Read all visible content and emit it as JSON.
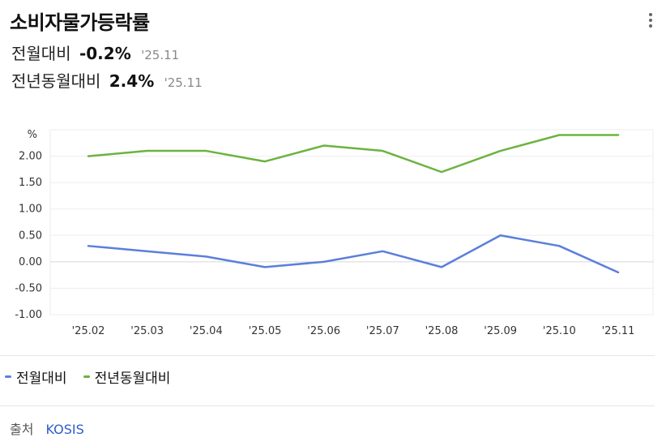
{
  "header": {
    "title": "소비자물가등락률",
    "mom_label": "전월대비",
    "mom_value": "-0.2%",
    "mom_period": "'25.11",
    "yoy_label": "전년동월대비",
    "yoy_value": "2.4%",
    "yoy_period": "'25.11",
    "menu_icon": "more-vertical-icon"
  },
  "chart_data": {
    "type": "line",
    "ylabel": "%",
    "x": [
      "'25.02",
      "'25.03",
      "'25.04",
      "'25.05",
      "'25.06",
      "'25.07",
      "'25.08",
      "'25.09",
      "'25.10",
      "'25.11"
    ],
    "yticks": [
      "-1.00",
      "-0.50",
      "0.00",
      "0.50",
      "1.00",
      "1.50",
      "2.00"
    ],
    "ylim": [
      -1.0,
      2.5
    ],
    "grid": true,
    "legend_position": "bottom-left",
    "series": [
      {
        "name": "전월대비",
        "color": "#5b7fdb",
        "values": [
          0.3,
          0.2,
          0.1,
          -0.1,
          0.0,
          0.2,
          -0.1,
          0.5,
          0.3,
          -0.2
        ]
      },
      {
        "name": "전년동월대비",
        "color": "#6cb33f",
        "values": [
          2.0,
          2.1,
          2.1,
          1.9,
          2.2,
          2.1,
          1.7,
          2.1,
          2.4,
          2.4
        ]
      }
    ]
  },
  "legend": {
    "mom": "전월대비",
    "yoy": "전년동월대비"
  },
  "footer": {
    "source_label": "출처",
    "source_link": "KOSIS"
  }
}
